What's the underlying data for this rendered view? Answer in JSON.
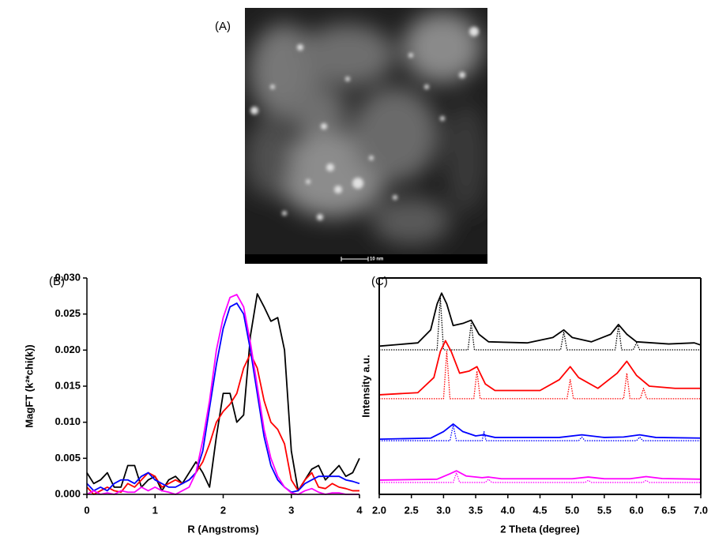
{
  "image_panel": {
    "label": "(A)",
    "scale_bar": "10 nm"
  },
  "chart_data": [
    {
      "type": "line",
      "panel_label": "(B)",
      "x_label": "R (Angstroms)",
      "y_label": "MagFT (k²*chi(k))",
      "xlim": [
        0,
        4
      ],
      "xticks": [
        0,
        1,
        2,
        3,
        4
      ],
      "ylim": [
        0,
        0.03
      ],
      "yticks": [
        {
          "value": 0,
          "label": "0.000"
        },
        {
          "value": 0.005,
          "label": "0.005"
        },
        {
          "value": 0.01,
          "label": "0.010"
        },
        {
          "value": 0.015,
          "label": "0.015"
        },
        {
          "value": 0.02,
          "label": "0.020"
        },
        {
          "value": 0.025,
          "label": "0.025"
        },
        {
          "value": 0.03,
          "label": "0.030"
        }
      ],
      "x": [
        0,
        0.1,
        0.2,
        0.3,
        0.4,
        0.5,
        0.6,
        0.7,
        0.8,
        0.9,
        1,
        1.1,
        1.2,
        1.3,
        1.4,
        1.5,
        1.6,
        1.7,
        1.8,
        1.9,
        2,
        2.1,
        2.2,
        2.3,
        2.4,
        2.5,
        2.6,
        2.7,
        2.8,
        2.9,
        3,
        3.1,
        3.2,
        3.3,
        3.4,
        3.5,
        3.6,
        3.7,
        3.8,
        3.9,
        4
      ],
      "series": [
        {
          "color": "#000000",
          "values": [
            0.003,
            0.0015,
            0.002,
            0.003,
            0.001,
            0.001,
            0.004,
            0.004,
            0.001,
            0.002,
            0.0025,
            0.0005,
            0.002,
            0.0025,
            0.0015,
            0.003,
            0.0045,
            0.003,
            0.001,
            0.008,
            0.014,
            0.014,
            0.01,
            0.011,
            0.022,
            0.0278,
            0.026,
            0.024,
            0.0245,
            0.02,
            0.006,
            0.0005,
            0.002,
            0.0035,
            0.004,
            0.002,
            0.003,
            0.004,
            0.0025,
            0.003,
            0.005
          ]
        },
        {
          "color": "#ff0000",
          "values": [
            0.001,
            0,
            0.0005,
            0.001,
            0.0005,
            0.0003,
            0.0015,
            0.001,
            0.002,
            0.003,
            0.0025,
            0.001,
            0.0015,
            0.002,
            0.0015,
            0.002,
            0.003,
            0.0045,
            0.007,
            0.01,
            0.0115,
            0.0125,
            0.014,
            0.0175,
            0.0195,
            0.0175,
            0.013,
            0.01,
            0.009,
            0.007,
            0.002,
            0.0005,
            0.002,
            0.003,
            0.001,
            0.0008,
            0.0015,
            0.001,
            0.0008,
            0.0005,
            0.0005
          ]
        },
        {
          "color": "#0000ff",
          "values": [
            0.0015,
            0.0005,
            0.001,
            0.0005,
            0.0015,
            0.002,
            0.002,
            0.0015,
            0.0025,
            0.003,
            0.002,
            0.0015,
            0.001,
            0.001,
            0.0015,
            0.002,
            0.003,
            0.006,
            0.012,
            0.018,
            0.023,
            0.026,
            0.0265,
            0.025,
            0.02,
            0.014,
            0.008,
            0.004,
            0.002,
            0.001,
            0.0003,
            0.0005,
            0.0015,
            0.002,
            0.0025,
            0.0025,
            0.0025,
            0.0025,
            0.002,
            0.0018,
            0.0015
          ]
        },
        {
          "color": "#ff00ff",
          "values": [
            0,
            0.0005,
            0,
            0.0002,
            0,
            0.0005,
            0.0003,
            0.0003,
            0.001,
            0.0005,
            0.001,
            0.0005,
            0.0003,
            0,
            0.0005,
            0.001,
            0.003,
            0.0075,
            0.013,
            0.02,
            0.0245,
            0.0273,
            0.0277,
            0.026,
            0.021,
            0.015,
            0.009,
            0.005,
            0.0025,
            0.001,
            0.0002,
            0,
            0.0005,
            0.0008,
            0.0003,
            0,
            0.0002,
            0.0002,
            0,
            0,
            0
          ]
        }
      ]
    },
    {
      "type": "line",
      "panel_label": "(C)",
      "x_label": "2 Theta (degree)",
      "y_label": "Intensity a.u.",
      "xlim": [
        2,
        7
      ],
      "xticks": [
        {
          "value": 2,
          "label": "2.0"
        },
        {
          "value": 2.5,
          "label": "2.5"
        },
        {
          "value": 3,
          "label": "3.0"
        },
        {
          "value": 3.5,
          "label": "3.5"
        },
        {
          "value": 4,
          "label": "4.0"
        },
        {
          "value": 4.5,
          "label": "4.5"
        },
        {
          "value": 5,
          "label": "5.0"
        },
        {
          "value": 5.5,
          "label": "5.5"
        },
        {
          "value": 6,
          "label": "6.0"
        },
        {
          "value": 6.5,
          "label": "6.5"
        },
        {
          "value": 7,
          "label": "7.0"
        }
      ],
      "ylim": [
        0,
        100
      ],
      "series": [
        {
          "color": "#000000",
          "style": "solid",
          "x": [
            2,
            2.6,
            2.8,
            2.9,
            2.97,
            3.05,
            3.15,
            3.3,
            3.43,
            3.55,
            3.7,
            4.3,
            4.7,
            4.87,
            5,
            5.3,
            5.6,
            5.72,
            5.85,
            6,
            6.5,
            6.9,
            7
          ],
          "values": [
            68.5,
            70,
            76,
            88,
            93,
            88,
            78,
            79,
            80.5,
            74,
            70.5,
            70,
            72.5,
            76,
            72.5,
            70.5,
            74,
            78.5,
            74,
            70.5,
            69.5,
            70,
            69
          ]
        },
        {
          "color": "#000000",
          "style": "dotted",
          "x": [
            2,
            2.9,
            2.95,
            3,
            3.38,
            3.43,
            3.48,
            4.82,
            4.87,
            4.92,
            5.67,
            5.72,
            5.77,
            5.95,
            6,
            6.05,
            7
          ],
          "values": [
            66.8,
            66.8,
            91,
            66.8,
            66.8,
            79,
            66.8,
            66.8,
            75,
            66.8,
            66.8,
            78,
            66.8,
            66.8,
            70,
            66.8,
            66.8
          ]
        },
        {
          "color": "#ff0000",
          "style": "solid",
          "x": [
            2,
            2.6,
            2.85,
            2.95,
            3.03,
            3.12,
            3.25,
            3.4,
            3.52,
            3.65,
            3.8,
            4.5,
            4.8,
            4.97,
            5.1,
            5.4,
            5.7,
            5.85,
            6,
            6.2,
            6.6,
            7
          ],
          "values": [
            46,
            47,
            54,
            66,
            71,
            66,
            56,
            57,
            59,
            51,
            48,
            48,
            53,
            59,
            54,
            49,
            56,
            61.5,
            55,
            50,
            49,
            49
          ]
        },
        {
          "color": "#ff0000",
          "style": "dotted",
          "x": [
            2,
            3,
            3.05,
            3.1,
            3.47,
            3.52,
            3.57,
            4.92,
            4.97,
            5.02,
            5.8,
            5.85,
            5.9,
            6.06,
            6.11,
            6.16,
            7
          ],
          "values": [
            44.2,
            44.2,
            66,
            44.2,
            44.2,
            57,
            44.2,
            44.2,
            53,
            44.2,
            44.2,
            56,
            44.2,
            44.2,
            49,
            44.2,
            44.2
          ]
        },
        {
          "color": "#0000ff",
          "style": "solid",
          "x": [
            2,
            2.8,
            3,
            3.15,
            3.3,
            3.5,
            3.62,
            3.8,
            4.8,
            5.15,
            5.5,
            5.8,
            6.05,
            6.3,
            7
          ],
          "values": [
            25.5,
            26,
            29,
            32.5,
            29,
            27,
            27.5,
            26.3,
            26.3,
            27.5,
            26.3,
            26.5,
            27.5,
            26.3,
            26
          ]
        },
        {
          "color": "#0000ff",
          "style": "dotted",
          "x": [
            2,
            3.1,
            3.15,
            3.2,
            3.6,
            3.63,
            3.66,
            5.1,
            5.15,
            5.2,
            6,
            6.05,
            6.1,
            7
          ],
          "values": [
            24.8,
            24.8,
            32,
            24.8,
            24.8,
            29,
            24.8,
            24.8,
            26.5,
            24.8,
            24.8,
            26.5,
            24.8,
            24.8
          ]
        },
        {
          "color": "#ff00ff",
          "style": "solid",
          "x": [
            2,
            2.9,
            3.1,
            3.2,
            3.35,
            3.6,
            3.7,
            3.9,
            5,
            5.25,
            5.5,
            5.9,
            6.15,
            6.4,
            7
          ],
          "values": [
            6.6,
            7,
            9.5,
            10.9,
            8.5,
            7.7,
            8,
            7.2,
            7.2,
            8,
            7.2,
            7.2,
            8.2,
            7.3,
            7
          ]
        },
        {
          "color": "#ff00ff",
          "style": "dotted",
          "x": [
            2,
            3.15,
            3.2,
            3.25,
            3.65,
            3.7,
            3.75,
            5.2,
            5.25,
            5.3,
            6.1,
            6.15,
            6.2,
            7
          ],
          "values": [
            5.5,
            5.5,
            10,
            5.5,
            5.5,
            7,
            5.5,
            5.5,
            6.5,
            5.5,
            5.5,
            6.5,
            5.5,
            5.5
          ]
        }
      ]
    }
  ]
}
